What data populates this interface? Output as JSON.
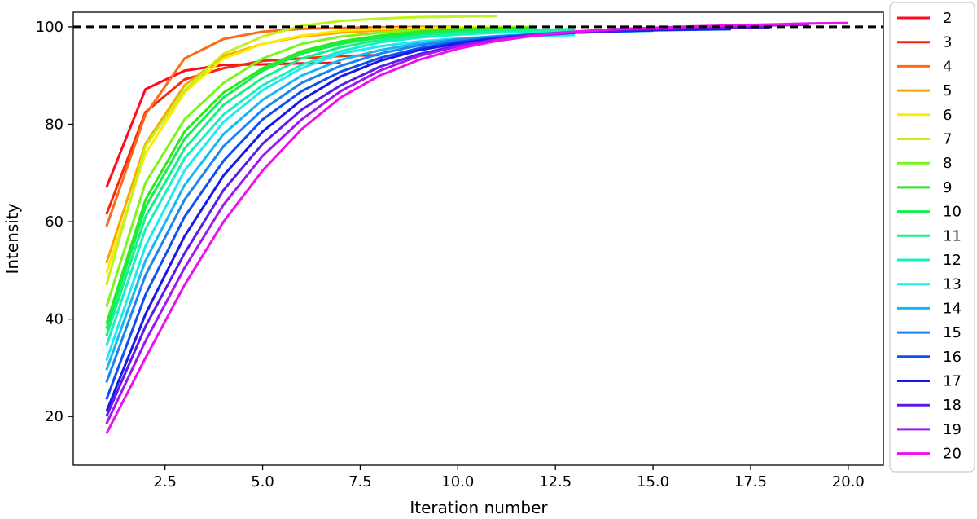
{
  "chart_data": {
    "type": "line",
    "title": "",
    "xlabel": "Iteration number",
    "ylabel": "Intensity",
    "xlim": [
      0.15,
      20.9
    ],
    "ylim": [
      10,
      103
    ],
    "xticks": [
      "2.5",
      "5.0",
      "7.5",
      "10.0",
      "12.5",
      "15.0",
      "17.5",
      "20.0"
    ],
    "yticks": [
      "20",
      "40",
      "60",
      "80",
      "100"
    ],
    "reference_line": {
      "y": 100,
      "style": "dashed",
      "color": "#000000"
    },
    "legend_position": "outside-right",
    "grid": false,
    "series": [
      {
        "name": "2",
        "color": "#ff0a1e",
        "x": [
          1,
          2,
          3,
          4,
          5,
          6,
          7
        ],
        "y": [
          67.0,
          87.2,
          91.0,
          92.2,
          92.3,
          92.5,
          92.6
        ]
      },
      {
        "name": "3",
        "color": "#f42a10",
        "x": [
          1,
          2,
          3,
          4,
          5,
          6,
          7,
          8
        ],
        "y": [
          61.5,
          82.5,
          89.2,
          91.5,
          93.0,
          93.5,
          94.0,
          94.2
        ]
      },
      {
        "name": "4",
        "color": "#ff6a18",
        "x": [
          1,
          2,
          3,
          4,
          5,
          6,
          7,
          8,
          9,
          10
        ],
        "y": [
          59.0,
          82.0,
          93.5,
          97.5,
          99.0,
          99.6,
          99.8,
          99.9,
          100.0,
          100.0
        ]
      },
      {
        "name": "5",
        "color": "#ffa500",
        "x": [
          1,
          2,
          3,
          4,
          5,
          6,
          7,
          8,
          9,
          10,
          11
        ],
        "y": [
          51.5,
          76.0,
          88.0,
          94.0,
          96.5,
          98.0,
          98.8,
          99.3,
          99.6,
          99.8,
          99.9
        ]
      },
      {
        "name": "6",
        "color": "#ffea00",
        "x": [
          1,
          2,
          3,
          4,
          5,
          6,
          7,
          8,
          9,
          10,
          11,
          12
        ],
        "y": [
          49.5,
          74.0,
          86.5,
          93.5,
          96.5,
          98.2,
          99.2,
          99.6,
          99.8,
          99.9,
          100.0,
          100.0
        ]
      },
      {
        "name": "7",
        "color": "#c2f21a",
        "x": [
          1,
          2,
          3,
          4,
          5,
          6,
          7,
          8,
          9,
          10,
          11
        ],
        "y": [
          47.0,
          75.5,
          87.0,
          94.5,
          98.0,
          100.2,
          101.2,
          101.7,
          102.0,
          102.1,
          102.2
        ]
      },
      {
        "name": "8",
        "color": "#7cf51a",
        "x": [
          1,
          2,
          3,
          4,
          5,
          6,
          7,
          8,
          9,
          10,
          11,
          12
        ],
        "y": [
          42.5,
          68.0,
          81.0,
          88.5,
          93.5,
          96.5,
          98.0,
          98.8,
          99.3,
          99.6,
          99.8,
          99.9
        ]
      },
      {
        "name": "9",
        "color": "#2ee81c",
        "x": [
          1,
          2,
          3,
          4,
          5,
          6,
          7,
          8,
          9,
          10,
          11,
          12
        ],
        "y": [
          39.0,
          64.5,
          78.5,
          86.5,
          91.5,
          95.0,
          97.0,
          98.2,
          99.0,
          99.4,
          99.7,
          99.8
        ]
      },
      {
        "name": "10",
        "color": "#10f050",
        "x": [
          1,
          2,
          3,
          4,
          5,
          6,
          7,
          8,
          9,
          10,
          11,
          12
        ],
        "y": [
          38.0,
          63.0,
          77.0,
          85.5,
          91.0,
          94.5,
          96.5,
          97.8,
          98.6,
          99.1,
          99.4,
          99.6
        ]
      },
      {
        "name": "11",
        "color": "#14f08a",
        "x": [
          1,
          2,
          3,
          4,
          5,
          6,
          7,
          8,
          9,
          10,
          11,
          12,
          13
        ],
        "y": [
          36.5,
          61.0,
          75.0,
          84.0,
          89.5,
          93.5,
          95.8,
          97.3,
          98.2,
          98.8,
          99.2,
          99.4,
          99.5
        ]
      },
      {
        "name": "12",
        "color": "#18f0c0",
        "x": [
          1,
          2,
          3,
          4,
          5,
          6,
          7,
          8,
          9,
          10,
          11,
          12,
          13
        ],
        "y": [
          34.5,
          58.5,
          73.0,
          82.0,
          88.0,
          92.2,
          95.0,
          96.8,
          97.8,
          98.4,
          98.8,
          99.0,
          99.1
        ]
      },
      {
        "name": "13",
        "color": "#1eeaf0",
        "x": [
          1,
          2,
          3,
          4,
          5,
          6,
          7,
          8,
          9,
          10,
          11,
          12,
          13
        ],
        "y": [
          31.5,
          55.0,
          70.5,
          80.5,
          87.0,
          91.5,
          94.5,
          96.0,
          97.0,
          97.6,
          98.0,
          98.2,
          98.3
        ]
      },
      {
        "name": "14",
        "color": "#16b8f2",
        "x": [
          1,
          2,
          3,
          4,
          5,
          6,
          7,
          8,
          9,
          10,
          11,
          12,
          13,
          14,
          15
        ],
        "y": [
          29.5,
          52.0,
          67.5,
          78.0,
          85.0,
          90.0,
          93.2,
          95.2,
          96.6,
          97.5,
          98.1,
          98.5,
          98.8,
          99.0,
          99.2
        ]
      },
      {
        "name": "15",
        "color": "#1a84f0",
        "x": [
          1,
          2,
          3,
          4,
          5,
          6,
          7,
          8,
          9,
          10,
          11,
          12,
          13,
          14,
          15,
          16
        ],
        "y": [
          27.0,
          49.0,
          64.5,
          75.5,
          83.0,
          88.5,
          92.0,
          94.5,
          96.2,
          97.3,
          98.0,
          98.5,
          98.9,
          99.2,
          99.4,
          99.5
        ]
      },
      {
        "name": "16",
        "color": "#0f4ef0",
        "x": [
          1,
          2,
          3,
          4,
          5,
          6,
          7,
          8,
          9,
          10,
          11,
          12,
          13,
          14,
          15,
          16,
          17
        ],
        "y": [
          23.5,
          45.0,
          61.0,
          72.5,
          81.0,
          86.8,
          90.8,
          93.6,
          95.6,
          96.9,
          97.8,
          98.4,
          98.8,
          99.1,
          99.3,
          99.4,
          99.5
        ]
      },
      {
        "name": "17",
        "color": "#1818e8",
        "x": [
          1,
          2,
          3,
          4,
          5,
          6,
          7,
          8,
          9,
          10,
          11,
          12,
          13,
          14,
          15,
          16,
          17
        ],
        "y": [
          21.0,
          41.0,
          57.0,
          69.5,
          78.5,
          85.0,
          89.8,
          93.0,
          95.2,
          96.6,
          97.6,
          98.3,
          98.8,
          99.1,
          99.3,
          99.5,
          99.6
        ]
      },
      {
        "name": "18",
        "color": "#5a1ce8",
        "x": [
          1,
          2,
          3,
          4,
          5,
          6,
          7,
          8,
          9,
          10,
          11,
          12,
          13,
          14,
          15,
          16,
          17,
          18
        ],
        "y": [
          20.0,
          38.5,
          53.5,
          66.5,
          76.0,
          83.0,
          88.0,
          91.8,
          94.4,
          96.2,
          97.4,
          98.2,
          98.8,
          99.2,
          99.5,
          99.7,
          99.8,
          99.9
        ]
      },
      {
        "name": "19",
        "color": "#9e18f0",
        "x": [
          1,
          2,
          3,
          4,
          5,
          6,
          7,
          8,
          9,
          10,
          11,
          12,
          13,
          14,
          15,
          16,
          17,
          18,
          19
        ],
        "y": [
          18.5,
          35.5,
          50.5,
          63.5,
          73.5,
          81.0,
          86.8,
          91.0,
          94.0,
          96.0,
          97.4,
          98.4,
          99.0,
          99.5,
          99.8,
          100.0,
          100.2,
          100.3,
          100.4
        ]
      },
      {
        "name": "20",
        "color": "#f00ff0",
        "x": [
          1,
          2,
          3,
          4,
          5,
          6,
          7,
          8,
          9,
          10,
          11,
          12,
          13,
          14,
          15,
          16,
          17,
          18,
          19,
          20
        ],
        "y": [
          16.5,
          32.0,
          47.0,
          60.0,
          70.5,
          79.0,
          85.5,
          90.0,
          93.2,
          95.5,
          97.1,
          98.2,
          99.0,
          99.5,
          99.8,
          100.1,
          100.3,
          100.5,
          100.7,
          100.8
        ]
      }
    ]
  }
}
